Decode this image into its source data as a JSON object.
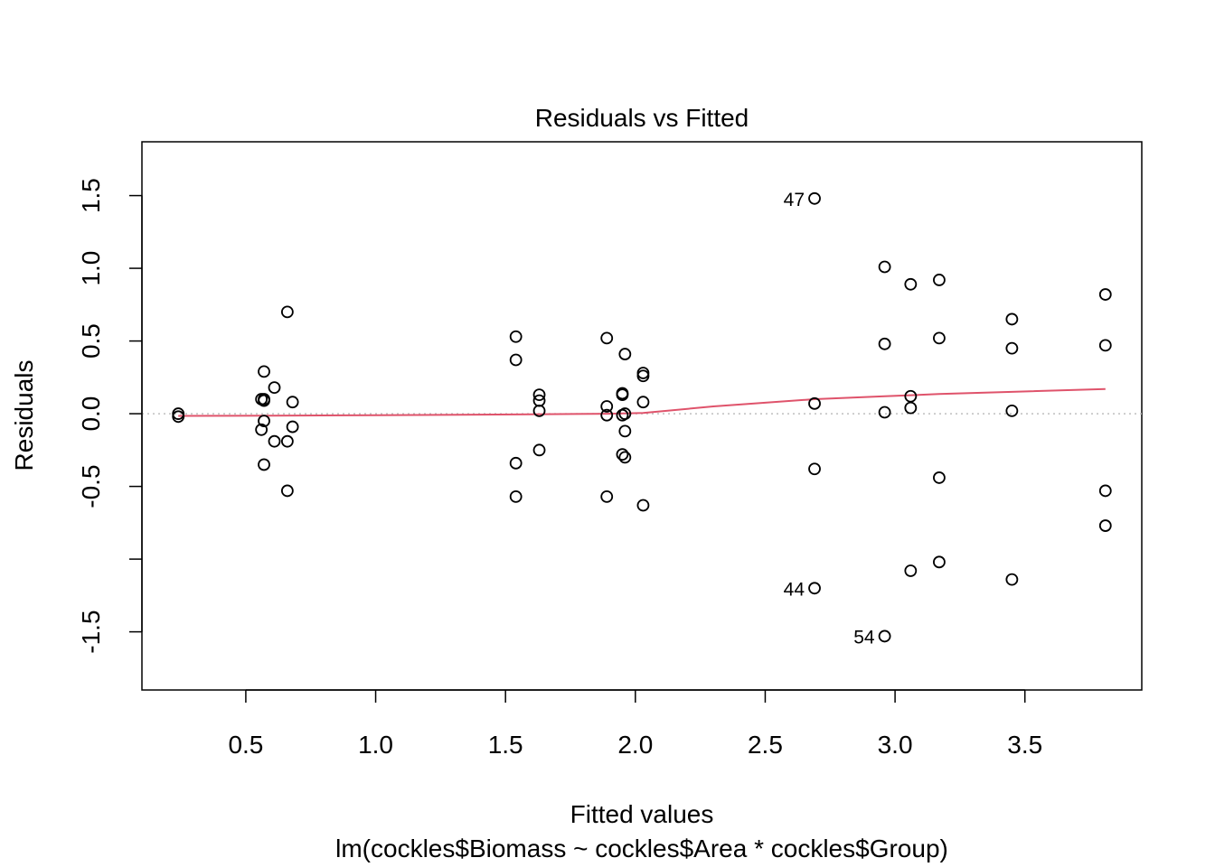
{
  "chart_data": {
    "type": "scatter",
    "title": "Residuals vs Fitted",
    "xlabel": "Fitted values",
    "subtitle": "lm(cockles$Biomass ~ cockles$Area * cockles$Group)",
    "ylabel": "Residuals",
    "xlim": [
      0.1,
      3.95
    ],
    "ylim": [
      -1.9,
      1.87
    ],
    "x_ticks": [
      0.5,
      1.0,
      1.5,
      2.0,
      2.5,
      3.0,
      3.5
    ],
    "x_tick_labels": [
      "0.5",
      "1.0",
      "1.5",
      "2.0",
      "2.5",
      "3.0",
      "3.5"
    ],
    "y_ticks": [
      -1.5,
      -1.0,
      -0.5,
      0.0,
      0.5,
      1.0,
      1.5
    ],
    "y_tick_labels": [
      "-1.5",
      "",
      "-0.5",
      "0.0",
      "0.5",
      "1.0",
      "1.5"
    ],
    "grid": false,
    "reference_line": {
      "y": 0.0,
      "style": "dotted",
      "color": "#bebebe"
    },
    "smoother_color": "#df536b",
    "points": [
      {
        "x": 0.24,
        "y": 0.0
      },
      {
        "x": 0.24,
        "y": -0.02
      },
      {
        "x": 0.56,
        "y": 0.1
      },
      {
        "x": 0.57,
        "y": 0.1
      },
      {
        "x": 0.57,
        "y": 0.09
      },
      {
        "x": 0.57,
        "y": 0.29
      },
      {
        "x": 0.57,
        "y": -0.05
      },
      {
        "x": 0.56,
        "y": -0.11
      },
      {
        "x": 0.57,
        "y": -0.35
      },
      {
        "x": 0.61,
        "y": 0.18
      },
      {
        "x": 0.61,
        "y": -0.19
      },
      {
        "x": 0.66,
        "y": 0.7
      },
      {
        "x": 0.66,
        "y": -0.19
      },
      {
        "x": 0.66,
        "y": -0.53
      },
      {
        "x": 0.68,
        "y": 0.08
      },
      {
        "x": 0.68,
        "y": -0.09
      },
      {
        "x": 1.54,
        "y": 0.53
      },
      {
        "x": 1.54,
        "y": 0.37
      },
      {
        "x": 1.54,
        "y": -0.34
      },
      {
        "x": 1.54,
        "y": -0.57
      },
      {
        "x": 1.63,
        "y": 0.13
      },
      {
        "x": 1.63,
        "y": 0.09
      },
      {
        "x": 1.63,
        "y": 0.02
      },
      {
        "x": 1.63,
        "y": -0.25
      },
      {
        "x": 1.89,
        "y": 0.52
      },
      {
        "x": 1.89,
        "y": 0.05
      },
      {
        "x": 1.89,
        "y": -0.01
      },
      {
        "x": 1.89,
        "y": -0.57
      },
      {
        "x": 1.95,
        "y": 0.14
      },
      {
        "x": 1.95,
        "y": 0.13
      },
      {
        "x": 1.95,
        "y": -0.01
      },
      {
        "x": 1.95,
        "y": -0.28
      },
      {
        "x": 1.96,
        "y": 0.41
      },
      {
        "x": 1.96,
        "y": 0.0
      },
      {
        "x": 1.96,
        "y": -0.12
      },
      {
        "x": 1.96,
        "y": -0.3
      },
      {
        "x": 2.03,
        "y": 0.28
      },
      {
        "x": 2.03,
        "y": 0.26
      },
      {
        "x": 2.03,
        "y": 0.08
      },
      {
        "x": 2.03,
        "y": -0.63
      },
      {
        "x": 2.69,
        "y": 1.48,
        "label": "47"
      },
      {
        "x": 2.69,
        "y": 0.07
      },
      {
        "x": 2.69,
        "y": -0.38
      },
      {
        "x": 2.69,
        "y": -1.2,
        "label": "44"
      },
      {
        "x": 2.96,
        "y": 1.01
      },
      {
        "x": 2.96,
        "y": 0.48
      },
      {
        "x": 2.96,
        "y": 0.01
      },
      {
        "x": 2.96,
        "y": -1.53,
        "label": "54"
      },
      {
        "x": 3.06,
        "y": 0.89
      },
      {
        "x": 3.06,
        "y": 0.12
      },
      {
        "x": 3.06,
        "y": 0.04
      },
      {
        "x": 3.06,
        "y": -1.08
      },
      {
        "x": 3.17,
        "y": 0.92
      },
      {
        "x": 3.17,
        "y": 0.52
      },
      {
        "x": 3.17,
        "y": -0.44
      },
      {
        "x": 3.17,
        "y": -1.02
      },
      {
        "x": 3.45,
        "y": 0.65
      },
      {
        "x": 3.45,
        "y": 0.45
      },
      {
        "x": 3.45,
        "y": 0.02
      },
      {
        "x": 3.45,
        "y": -1.14
      },
      {
        "x": 3.81,
        "y": 0.82
      },
      {
        "x": 3.81,
        "y": 0.47
      },
      {
        "x": 3.81,
        "y": -0.53
      },
      {
        "x": 3.81,
        "y": -0.77
      }
    ],
    "smoother": {
      "x": [
        0.24,
        0.6,
        1.0,
        1.54,
        1.9,
        2.03,
        2.3,
        2.69,
        2.96,
        3.17,
        3.45,
        3.81
      ],
      "y": [
        -0.015,
        -0.013,
        -0.01,
        -0.005,
        0.0,
        0.005,
        0.05,
        0.1,
        0.12,
        0.135,
        0.15,
        0.17
      ]
    }
  }
}
